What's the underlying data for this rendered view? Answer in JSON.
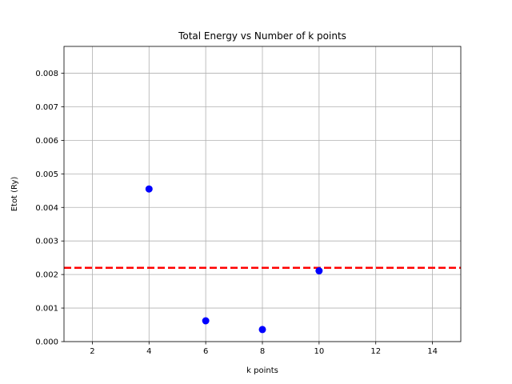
{
  "chart_data": {
    "type": "scatter",
    "title": "Total Energy vs Number of k points",
    "xlabel": "k points",
    "ylabel": "Etot (Ry)",
    "xlim": [
      1,
      15
    ],
    "ylim": [
      0,
      0.0088
    ],
    "x_ticks": [
      2,
      4,
      6,
      8,
      10,
      12,
      14
    ],
    "y_ticks": [
      0.0,
      0.001,
      0.002,
      0.003,
      0.004,
      0.005,
      0.006,
      0.007,
      0.008
    ],
    "x_tick_labels": [
      "2",
      "4",
      "6",
      "8",
      "10",
      "12",
      "14"
    ],
    "y_tick_labels": [
      "0.000",
      "0.001",
      "0.002",
      "0.003",
      "0.004",
      "0.005",
      "0.006",
      "0.007",
      "0.008"
    ],
    "grid": true,
    "series": [
      {
        "x": [
          4,
          6,
          8,
          10
        ],
        "y": [
          0.00455,
          0.00062,
          0.00036,
          0.00211
        ],
        "color": "#0000ff"
      }
    ],
    "reference_line": {
      "y": 0.0022,
      "color": "#ff0000",
      "style": "dashed"
    }
  }
}
